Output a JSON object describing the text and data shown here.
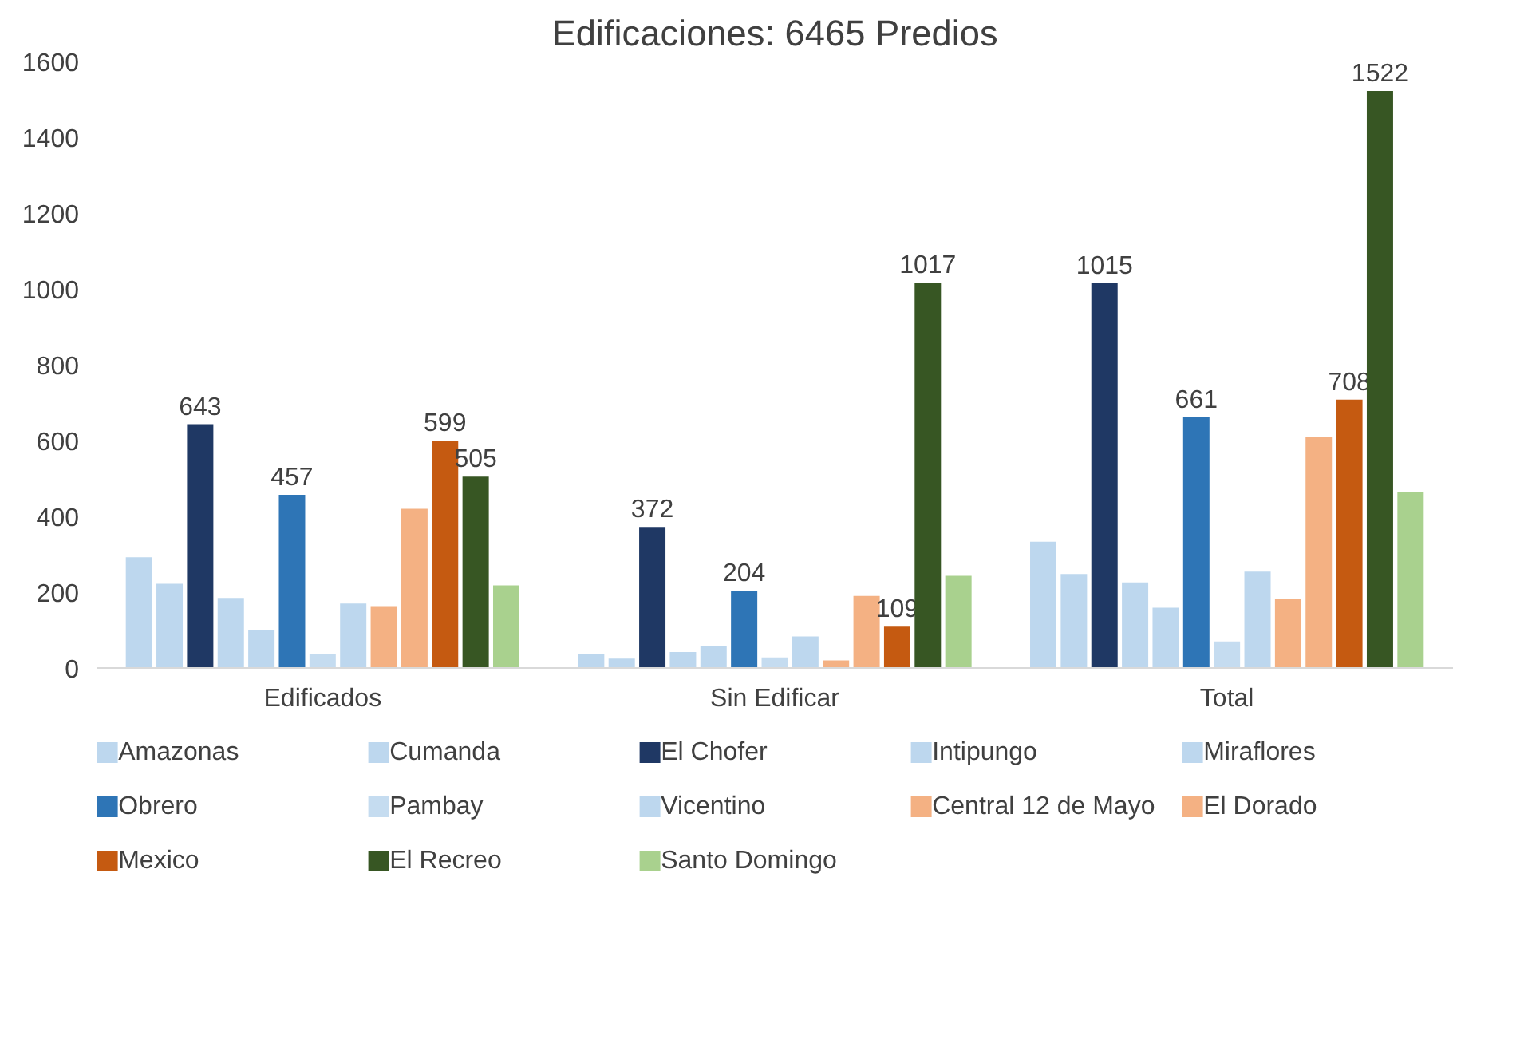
{
  "chart_data": {
    "type": "bar",
    "title": "Edificaciones: 6465 Predios",
    "categories": [
      "Edificados",
      "Sin Edificar",
      "Total"
    ],
    "ylim": [
      0,
      1600
    ],
    "yticks": [
      0,
      200,
      400,
      600,
      800,
      1000,
      1200,
      1400,
      1600
    ],
    "grid": false,
    "legend": "bottom",
    "series": [
      {
        "name": "Amazonas",
        "color": "#bdd7ee",
        "values": [
          292,
          38,
          333
        ]
      },
      {
        "name": "Cumanda",
        "color": "#bdd7ee",
        "values": [
          222,
          25,
          248
        ]
      },
      {
        "name": "El Chofer",
        "color": "#1f3864",
        "values": [
          643,
          372,
          1015
        ],
        "value_labels": [
          "643",
          "372",
          "1015"
        ]
      },
      {
        "name": "Intipungo",
        "color": "#bdd7ee",
        "values": [
          185,
          42,
          226
        ]
      },
      {
        "name": "Miraflores",
        "color": "#bdd7ee",
        "values": [
          100,
          57,
          159
        ]
      },
      {
        "name": "Obrero",
        "color": "#2e75b6",
        "values": [
          457,
          204,
          661
        ],
        "value_labels": [
          "457",
          "204",
          "661"
        ]
      },
      {
        "name": "Pambay",
        "color": "#c5dcf0",
        "values": [
          38,
          28,
          70
        ]
      },
      {
        "name": "Vicentino",
        "color": "#bdd7ee",
        "values": [
          170,
          83,
          254
        ]
      },
      {
        "name": "Central 12 de Mayo",
        "color": "#f4b183",
        "values": [
          163,
          20,
          183
        ]
      },
      {
        "name": "El Dorado",
        "color": "#f4b183",
        "values": [
          420,
          190,
          609
        ]
      },
      {
        "name": "Mexico",
        "color": "#c55a11",
        "values": [
          599,
          109,
          708
        ],
        "value_labels": [
          "599",
          "109",
          "708"
        ]
      },
      {
        "name": "El Recreo",
        "color": "#375623",
        "values": [
          505,
          1017,
          1522
        ],
        "value_labels": [
          "505",
          "1017",
          "1522"
        ]
      },
      {
        "name": "Santo Domingo",
        "color": "#a9d18e",
        "values": [
          218,
          243,
          463
        ]
      }
    ]
  }
}
